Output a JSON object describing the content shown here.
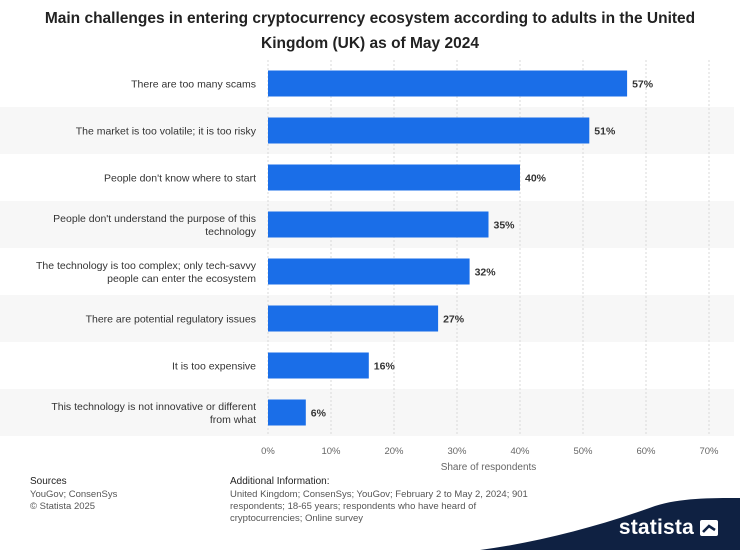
{
  "title": "Main challenges in entering cryptocurrency ecosystem according to adults in the United Kingdom (UK) as of May 2024",
  "footer": {
    "sources_heading": "Sources",
    "sources_line1": "YouGov; ConsenSys",
    "sources_line2": "© Statista 2025",
    "additional_heading": "Additional Information:",
    "additional_text": "United Kingdom; ConsenSys; YouGov; February 2 to May 2, 2024; 901 respondents; 18-65 years; respondents who have heard of cryptocurrencies; Online survey"
  },
  "brand": {
    "name": "statista"
  },
  "colors": {
    "bar": "#1a6ee8",
    "band": "#f7f7f7",
    "grid": "#d9d9d9",
    "brand_bg": "#0f2142"
  },
  "chart_data": {
    "type": "bar",
    "orientation": "horizontal",
    "categories": [
      [
        "There are too many scams"
      ],
      [
        "The market is too volatile; it is too risky"
      ],
      [
        "People don't know where to start"
      ],
      [
        "People don't understand the purpose of this",
        "technology"
      ],
      [
        "The technology is too complex; only tech-savvy",
        "people can enter the ecosystem"
      ],
      [
        "There are potential regulatory issues"
      ],
      [
        "It is too expensive"
      ],
      [
        "This technology is not innovative or different",
        "from what"
      ]
    ],
    "values": [
      57,
      51,
      40,
      35,
      32,
      27,
      16,
      6
    ],
    "value_labels": [
      "57%",
      "51%",
      "40%",
      "35%",
      "32%",
      "27%",
      "16%",
      "6%"
    ],
    "xlabel": "Share of respondents",
    "xlim": [
      0,
      70
    ],
    "xticks": [
      0,
      10,
      20,
      30,
      40,
      50,
      60,
      70
    ],
    "xtick_labels": [
      "0%",
      "10%",
      "20%",
      "30%",
      "40%",
      "50%",
      "60%",
      "70%"
    ],
    "grid": true
  }
}
